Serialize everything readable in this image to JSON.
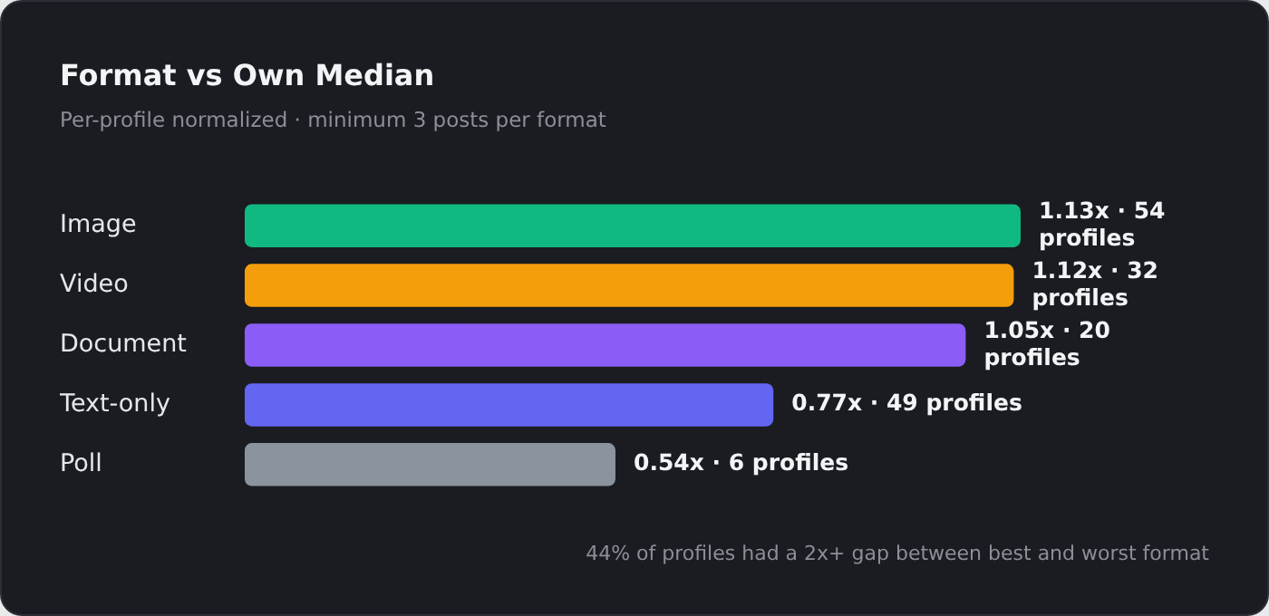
{
  "chart_data": {
    "type": "bar",
    "orientation": "horizontal",
    "title": "Format vs Own Median",
    "subtitle": "Per-profile normalized · minimum 3 posts per format",
    "categories": [
      "Image",
      "Video",
      "Document",
      "Text-only",
      "Poll"
    ],
    "values": [
      1.13,
      1.12,
      1.05,
      0.77,
      0.54
    ],
    "colors": [
      "#10b981",
      "#f59e0b",
      "#8b5cf6",
      "#6366f1",
      "#8b939e"
    ],
    "value_labels": [
      "1.13x · 54 profiles",
      "1.12x · 32 profiles",
      "1.05x · 20 profiles",
      "0.77x · 49 profiles",
      "0.54x · 6 profiles"
    ],
    "annotations": [
      "44% of profiles had a 2x+ gap between best and worst format"
    ],
    "legend": false
  }
}
